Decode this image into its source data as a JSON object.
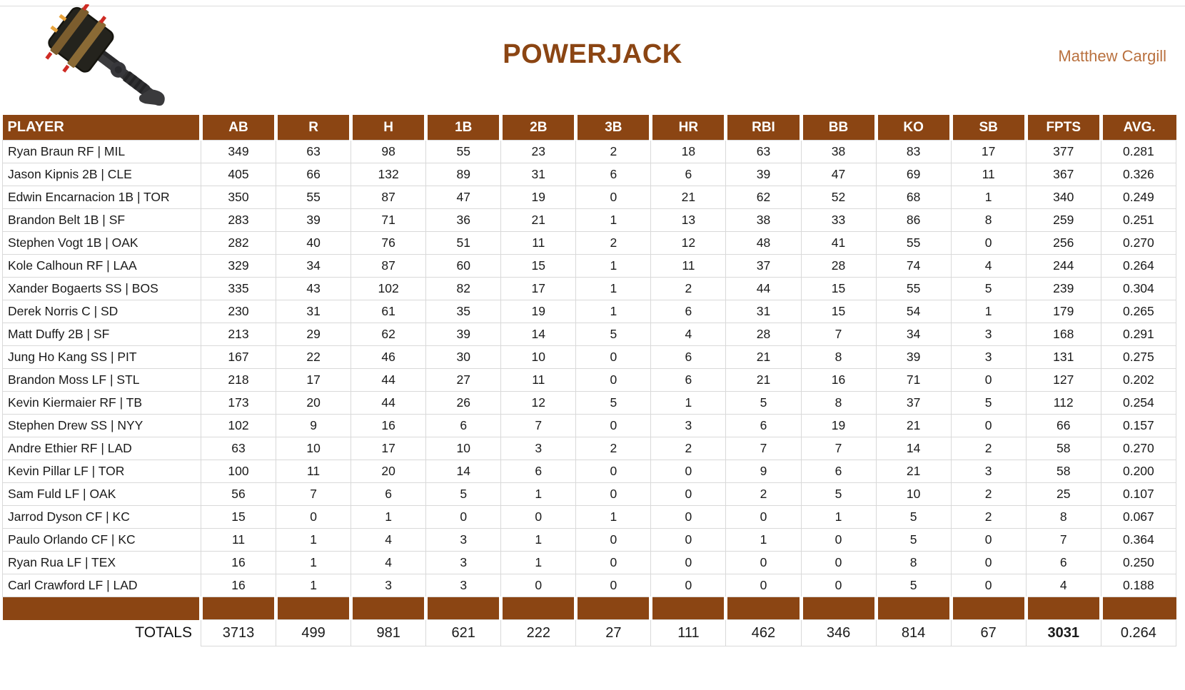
{
  "header": {
    "title": "POWERJACK",
    "author": "Matthew Cargill",
    "logo": "powerjack-sledgehammer"
  },
  "colors": {
    "header_brown": "#8B4513",
    "title_brown": "#8B4513",
    "author_brown": "#B9713F",
    "gridline": "#d9d9d9"
  },
  "table": {
    "columns": [
      "PLAYER",
      "AB",
      "R",
      "H",
      "1B",
      "2B",
      "3B",
      "HR",
      "RBI",
      "BB",
      "KO",
      "SB",
      "FPTS",
      "AVG."
    ],
    "rows": [
      {
        "player": "Ryan Braun RF | MIL",
        "values": [
          "349",
          "63",
          "98",
          "55",
          "23",
          "2",
          "18",
          "63",
          "38",
          "83",
          "17",
          "377",
          "0.281"
        ]
      },
      {
        "player": "Jason Kipnis 2B | CLE",
        "values": [
          "405",
          "66",
          "132",
          "89",
          "31",
          "6",
          "6",
          "39",
          "47",
          "69",
          "11",
          "367",
          "0.326"
        ]
      },
      {
        "player": "Edwin Encarnacion 1B | TOR",
        "values": [
          "350",
          "55",
          "87",
          "47",
          "19",
          "0",
          "21",
          "62",
          "52",
          "68",
          "1",
          "340",
          "0.249"
        ]
      },
      {
        "player": "Brandon Belt 1B | SF",
        "values": [
          "283",
          "39",
          "71",
          "36",
          "21",
          "1",
          "13",
          "38",
          "33",
          "86",
          "8",
          "259",
          "0.251"
        ]
      },
      {
        "player": "Stephen Vogt 1B | OAK",
        "values": [
          "282",
          "40",
          "76",
          "51",
          "11",
          "2",
          "12",
          "48",
          "41",
          "55",
          "0",
          "256",
          "0.270"
        ]
      },
      {
        "player": "Kole Calhoun RF | LAA",
        "values": [
          "329",
          "34",
          "87",
          "60",
          "15",
          "1",
          "11",
          "37",
          "28",
          "74",
          "4",
          "244",
          "0.264"
        ]
      },
      {
        "player": "Xander Bogaerts SS | BOS",
        "values": [
          "335",
          "43",
          "102",
          "82",
          "17",
          "1",
          "2",
          "44",
          "15",
          "55",
          "5",
          "239",
          "0.304"
        ]
      },
      {
        "player": "Derek Norris C | SD",
        "values": [
          "230",
          "31",
          "61",
          "35",
          "19",
          "1",
          "6",
          "31",
          "15",
          "54",
          "1",
          "179",
          "0.265"
        ]
      },
      {
        "player": "Matt Duffy 2B | SF",
        "values": [
          "213",
          "29",
          "62",
          "39",
          "14",
          "5",
          "4",
          "28",
          "7",
          "34",
          "3",
          "168",
          "0.291"
        ]
      },
      {
        "player": "Jung Ho Kang SS | PIT",
        "values": [
          "167",
          "22",
          "46",
          "30",
          "10",
          "0",
          "6",
          "21",
          "8",
          "39",
          "3",
          "131",
          "0.275"
        ]
      },
      {
        "player": "Brandon Moss LF | STL",
        "values": [
          "218",
          "17",
          "44",
          "27",
          "11",
          "0",
          "6",
          "21",
          "16",
          "71",
          "0",
          "127",
          "0.202"
        ]
      },
      {
        "player": "Kevin Kiermaier RF | TB",
        "values": [
          "173",
          "20",
          "44",
          "26",
          "12",
          "5",
          "1",
          "5",
          "8",
          "37",
          "5",
          "112",
          "0.254"
        ]
      },
      {
        "player": "Stephen Drew SS | NYY",
        "values": [
          "102",
          "9",
          "16",
          "6",
          "7",
          "0",
          "3",
          "6",
          "19",
          "21",
          "0",
          "66",
          "0.157"
        ]
      },
      {
        "player": "Andre Ethier RF | LAD",
        "values": [
          "63",
          "10",
          "17",
          "10",
          "3",
          "2",
          "2",
          "7",
          "7",
          "14",
          "2",
          "58",
          "0.270"
        ]
      },
      {
        "player": "Kevin Pillar LF | TOR",
        "values": [
          "100",
          "11",
          "20",
          "14",
          "6",
          "0",
          "0",
          "9",
          "6",
          "21",
          "3",
          "58",
          "0.200"
        ]
      },
      {
        "player": "Sam Fuld LF | OAK",
        "values": [
          "56",
          "7",
          "6",
          "5",
          "1",
          "0",
          "0",
          "2",
          "5",
          "10",
          "2",
          "25",
          "0.107"
        ]
      },
      {
        "player": "Jarrod Dyson CF | KC",
        "values": [
          "15",
          "0",
          "1",
          "0",
          "0",
          "1",
          "0",
          "0",
          "1",
          "5",
          "2",
          "8",
          "0.067"
        ]
      },
      {
        "player": "Paulo Orlando CF | KC",
        "values": [
          "11",
          "1",
          "4",
          "3",
          "1",
          "0",
          "0",
          "1",
          "0",
          "5",
          "0",
          "7",
          "0.364"
        ]
      },
      {
        "player": "Ryan Rua LF | TEX",
        "values": [
          "16",
          "1",
          "4",
          "3",
          "1",
          "0",
          "0",
          "0",
          "0",
          "8",
          "0",
          "6",
          "0.250"
        ]
      },
      {
        "player": "Carl Crawford LF | LAD",
        "values": [
          "16",
          "1",
          "3",
          "3",
          "0",
          "0",
          "0",
          "0",
          "0",
          "5",
          "0",
          "4",
          "0.188"
        ]
      }
    ],
    "totals_label": "TOTALS",
    "totals": [
      "3713",
      "499",
      "981",
      "621",
      "222",
      "27",
      "111",
      "462",
      "346",
      "814",
      "67",
      "3031",
      "0.264"
    ]
  }
}
